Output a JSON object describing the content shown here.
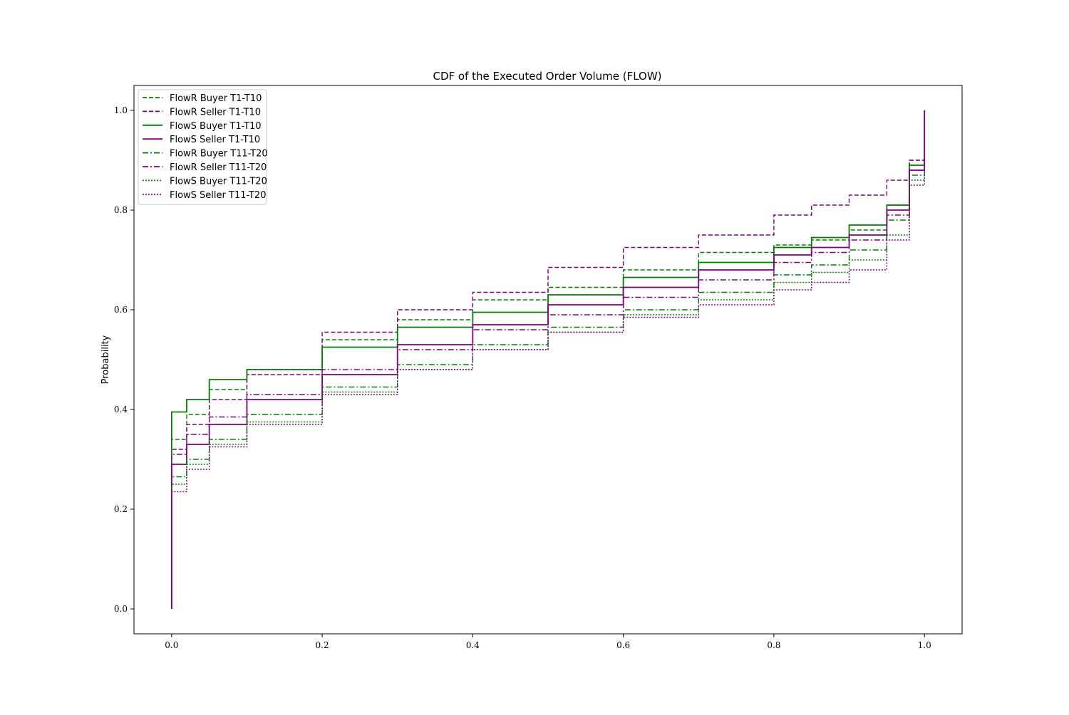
{
  "chart_data": {
    "type": "line",
    "title": "CDF of the Executed Order Volume (FLOW)",
    "xlabel": "",
    "ylabel": "Probability",
    "xlim": [
      -0.05,
      1.05
    ],
    "ylim": [
      -0.05,
      1.05
    ],
    "xticks": [
      0.0,
      0.2,
      0.4,
      0.6,
      0.8,
      1.0
    ],
    "xtick_labels": [
      "0.0",
      "0.2",
      "0.4",
      "0.6",
      "0.8",
      "1.0"
    ],
    "yticks": [
      0.0,
      0.2,
      0.4,
      0.6,
      0.8,
      1.0
    ],
    "ytick_labels": [
      "0.0",
      "0.2",
      "0.4",
      "0.6",
      "0.8",
      "1.0"
    ],
    "grid": false,
    "legend_position": "top-left",
    "series": [
      {
        "name": "FlowR Buyer T1-T10",
        "color": "#008000",
        "linestyle": "dashed",
        "x": [
          0.0,
          0.0,
          0.02,
          0.05,
          0.1,
          0.2,
          0.3,
          0.4,
          0.5,
          0.6,
          0.7,
          0.8,
          0.85,
          0.9,
          0.95,
          0.98,
          1.0
        ],
        "y": [
          0.0,
          0.34,
          0.39,
          0.44,
          0.48,
          0.54,
          0.58,
          0.62,
          0.645,
          0.68,
          0.715,
          0.73,
          0.74,
          0.76,
          0.81,
          0.9,
          1.0
        ]
      },
      {
        "name": "FlowR Seller T1-T10",
        "color": "#800080",
        "linestyle": "dashed",
        "x": [
          0.0,
          0.0,
          0.02,
          0.05,
          0.1,
          0.2,
          0.3,
          0.4,
          0.5,
          0.6,
          0.7,
          0.8,
          0.85,
          0.9,
          0.95,
          0.98,
          1.0
        ],
        "y": [
          0.0,
          0.32,
          0.37,
          0.42,
          0.47,
          0.555,
          0.6,
          0.635,
          0.685,
          0.725,
          0.75,
          0.79,
          0.81,
          0.83,
          0.86,
          0.9,
          1.0
        ]
      },
      {
        "name": "FlowS Buyer T1-T10",
        "color": "#008000",
        "linestyle": "solid",
        "x": [
          0.0,
          0.0,
          0.02,
          0.05,
          0.1,
          0.2,
          0.3,
          0.4,
          0.5,
          0.6,
          0.7,
          0.8,
          0.85,
          0.9,
          0.95,
          0.98,
          1.0
        ],
        "y": [
          0.0,
          0.395,
          0.42,
          0.46,
          0.48,
          0.525,
          0.565,
          0.595,
          0.63,
          0.665,
          0.695,
          0.725,
          0.745,
          0.77,
          0.81,
          0.89,
          1.0
        ]
      },
      {
        "name": "FlowS Seller T1-T10",
        "color": "#800080",
        "linestyle": "solid",
        "x": [
          0.0,
          0.0,
          0.02,
          0.05,
          0.1,
          0.2,
          0.3,
          0.4,
          0.5,
          0.6,
          0.7,
          0.8,
          0.85,
          0.9,
          0.95,
          0.98,
          1.0
        ],
        "y": [
          0.0,
          0.29,
          0.33,
          0.37,
          0.42,
          0.47,
          0.53,
          0.57,
          0.61,
          0.645,
          0.68,
          0.71,
          0.725,
          0.75,
          0.8,
          0.88,
          1.0
        ]
      },
      {
        "name": "FlowR Buyer T11-T20",
        "color": "#008000",
        "linestyle": "dashdot",
        "x": [
          0.0,
          0.0,
          0.02,
          0.05,
          0.1,
          0.2,
          0.3,
          0.4,
          0.5,
          0.6,
          0.7,
          0.8,
          0.85,
          0.9,
          0.95,
          0.98,
          1.0
        ],
        "y": [
          0.0,
          0.265,
          0.3,
          0.34,
          0.39,
          0.445,
          0.49,
          0.53,
          0.565,
          0.6,
          0.635,
          0.67,
          0.69,
          0.72,
          0.78,
          0.87,
          1.0
        ]
      },
      {
        "name": "FlowR Seller T11-T20",
        "color": "#800080",
        "linestyle": "dashdot",
        "x": [
          0.0,
          0.0,
          0.02,
          0.05,
          0.1,
          0.2,
          0.3,
          0.4,
          0.5,
          0.6,
          0.7,
          0.8,
          0.85,
          0.9,
          0.95,
          0.98,
          1.0
        ],
        "y": [
          0.0,
          0.31,
          0.35,
          0.385,
          0.43,
          0.48,
          0.52,
          0.56,
          0.59,
          0.625,
          0.66,
          0.695,
          0.715,
          0.74,
          0.79,
          0.88,
          1.0
        ]
      },
      {
        "name": "FlowS Buyer T11-T20",
        "color": "#008000",
        "linestyle": "dotted",
        "x": [
          0.0,
          0.0,
          0.02,
          0.05,
          0.1,
          0.2,
          0.3,
          0.4,
          0.5,
          0.6,
          0.7,
          0.8,
          0.85,
          0.9,
          0.95,
          0.98,
          1.0
        ],
        "y": [
          0.0,
          0.25,
          0.29,
          0.33,
          0.375,
          0.435,
          0.48,
          0.52,
          0.555,
          0.59,
          0.62,
          0.655,
          0.675,
          0.7,
          0.75,
          0.86,
          1.0
        ]
      },
      {
        "name": "FlowS Seller T11-T20",
        "color": "#800080",
        "linestyle": "dotted",
        "x": [
          0.0,
          0.0,
          0.02,
          0.05,
          0.1,
          0.2,
          0.3,
          0.4,
          0.5,
          0.6,
          0.7,
          0.8,
          0.85,
          0.9,
          0.95,
          0.98,
          1.0
        ],
        "y": [
          0.0,
          0.235,
          0.28,
          0.325,
          0.37,
          0.43,
          0.48,
          0.52,
          0.555,
          0.585,
          0.61,
          0.64,
          0.655,
          0.68,
          0.74,
          0.85,
          1.0
        ]
      }
    ]
  }
}
